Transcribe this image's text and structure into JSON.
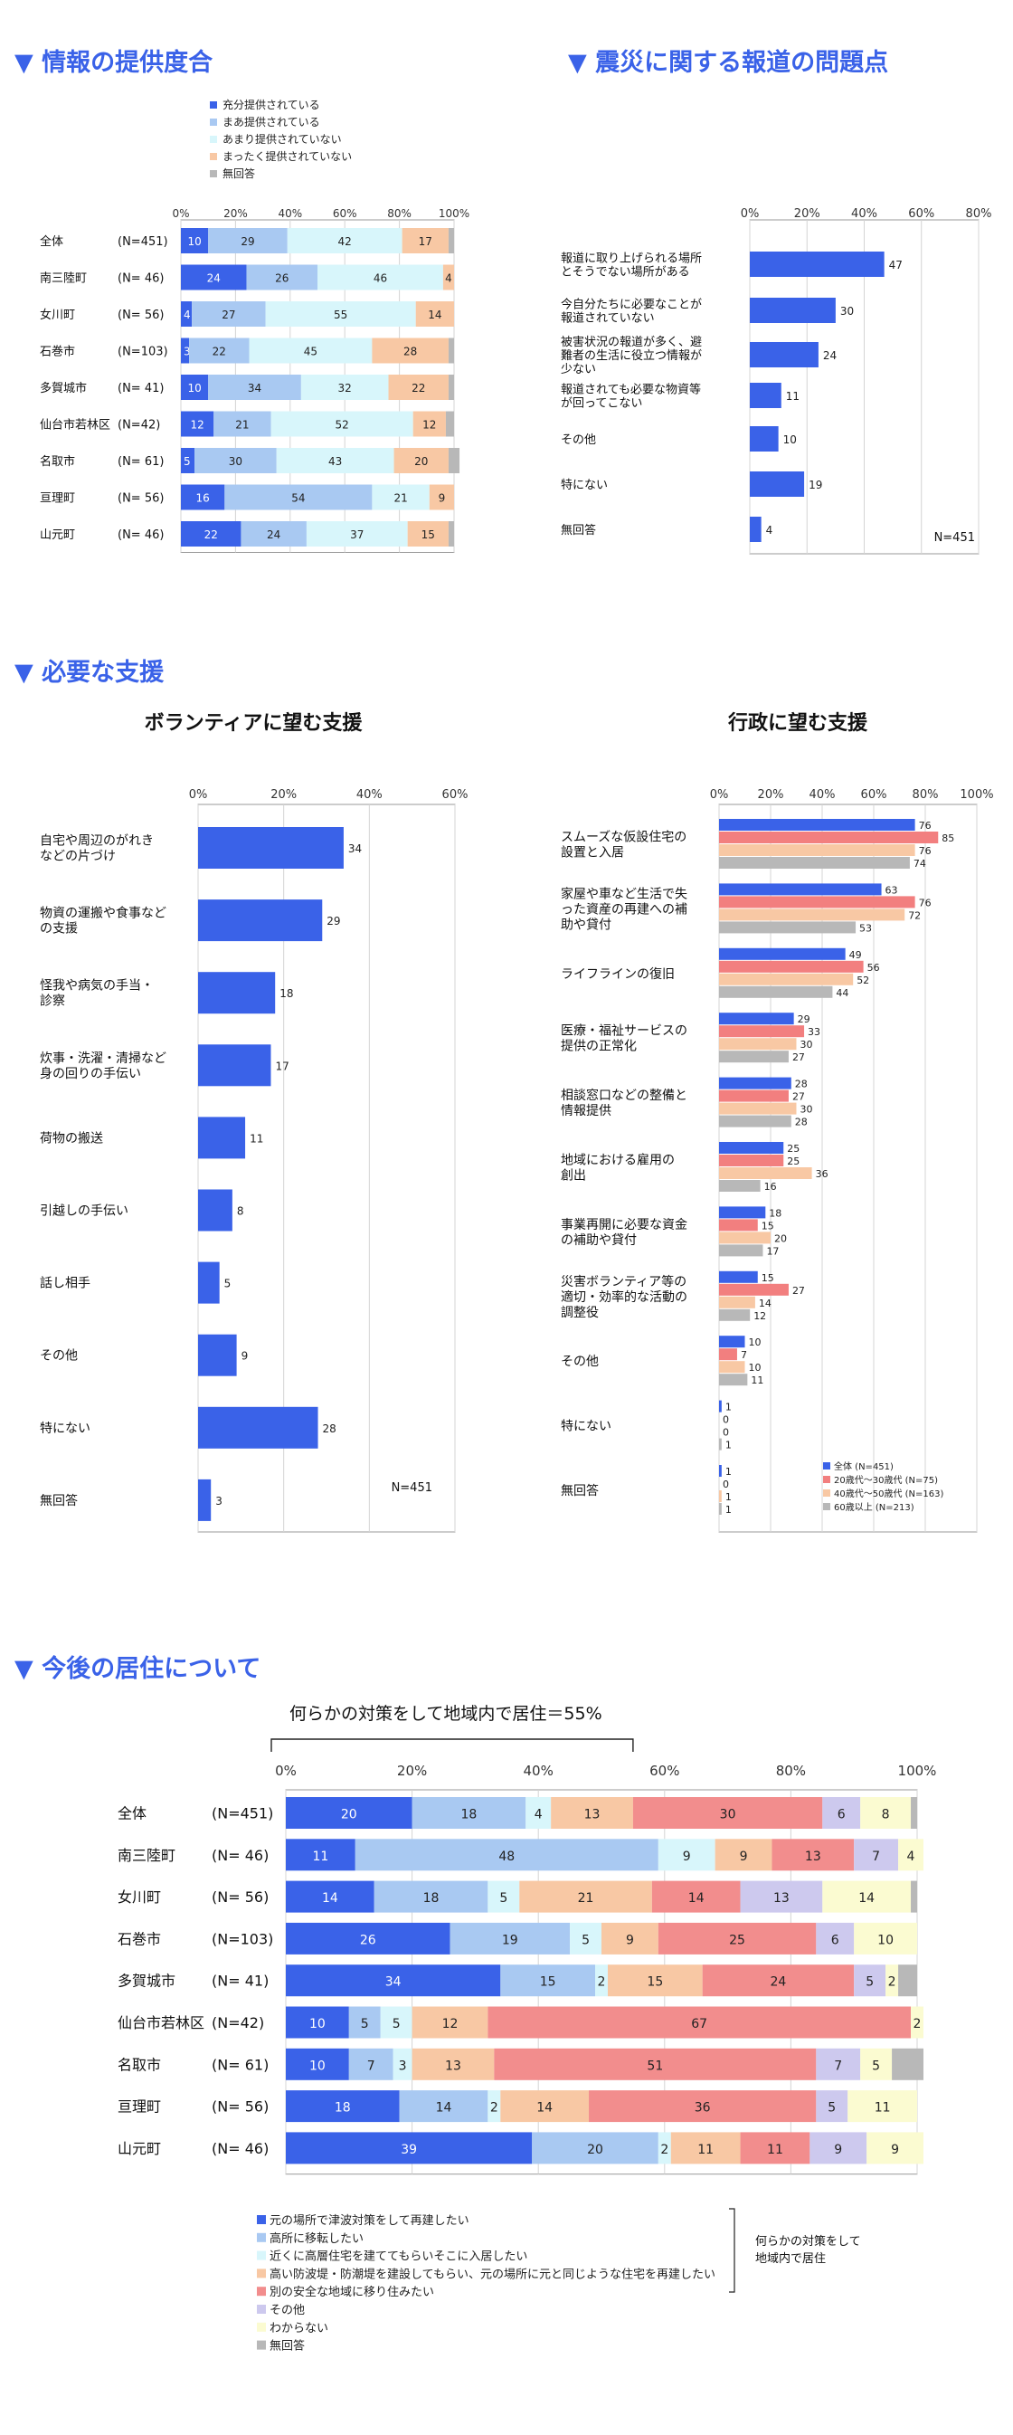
{
  "sections": {
    "info": "▼ 情報の提供度合",
    "problems": "▼ 震災に関する報道の問題点",
    "support": "▼ 必要な支援",
    "residence": "▼ 今後の居住について"
  },
  "colors": {
    "heading": "#3a62e8",
    "blue": "#3a62e8",
    "lightblue": "#a9c9f2",
    "pale": "#d8f6fb",
    "peach": "#f8c8a4",
    "salmon": "#f28d8d",
    "lavender": "#cdc9ee",
    "cream": "#fbfbd1",
    "gray": "#b8b8b8",
    "red": "#f27f7f"
  },
  "chart_data": [
    {
      "id": "info",
      "type": "bar",
      "stacked": true,
      "orientation": "horizontal",
      "title": "",
      "categories": [
        "全体",
        "南三陸町",
        "女川町",
        "石巻市",
        "多賀城市",
        "仙台市若林区",
        "名取市",
        "亘理町",
        "山元町"
      ],
      "ns": [
        "(N=451)",
        "(N= 46)",
        "(N= 56)",
        "(N=103)",
        "(N= 41)",
        "(N=42)",
        "(N= 61)",
        "(N= 56)",
        "(N= 46)"
      ],
      "xlim": [
        0,
        100
      ],
      "ticks": [
        "0%",
        "20%",
        "40%",
        "60%",
        "80%",
        "100%"
      ],
      "series": [
        {
          "name": "充分提供されている",
          "values": [
            10,
            24,
            4,
            3,
            10,
            12,
            5,
            16,
            22
          ]
        },
        {
          "name": "まあ提供されている",
          "values": [
            29,
            26,
            27,
            22,
            34,
            21,
            30,
            54,
            24
          ]
        },
        {
          "name": "あまり提供されていない",
          "values": [
            42,
            46,
            55,
            45,
            32,
            52,
            43,
            21,
            37
          ]
        },
        {
          "name": "まったく提供されていない",
          "values": [
            17,
            4,
            14,
            28,
            22,
            12,
            20,
            9,
            15
          ]
        },
        {
          "name": "無回答",
          "values": [
            2,
            0,
            0,
            2,
            2,
            3,
            4,
            0,
            2
          ]
        }
      ],
      "legend": "top"
    },
    {
      "id": "problems",
      "type": "bar",
      "orientation": "horizontal",
      "categories": [
        "報道に取り上げられる場所とそうでない場所がある",
        "今自分たちに必要なことが報道されていない",
        "被害状況の報道が多く、避難者の生活に役立つ情報が少ない",
        "報道されても必要な物資等が回ってこない",
        "その他",
        "特にない",
        "無回答"
      ],
      "values": [
        47,
        30,
        24,
        11,
        10,
        19,
        4
      ],
      "xlim": [
        0,
        80
      ],
      "ticks": [
        "0%",
        "20%",
        "40%",
        "60%",
        "80%"
      ],
      "n_label": "N=451"
    },
    {
      "id": "volunteer",
      "type": "bar",
      "orientation": "horizontal",
      "title": "ボランティアに望む支援",
      "categories": [
        "自宅や周辺のがれきなどの片づけ",
        "物資の運搬や食事などの支援",
        "怪我や病気の手当・診察",
        "炊事・洗濯・清掃など身の回りの手伝い",
        "荷物の搬送",
        "引越しの手伝い",
        "話し相手",
        "その他",
        "特にない",
        "無回答"
      ],
      "values": [
        34,
        29,
        18,
        17,
        11,
        8,
        5,
        9,
        28,
        3
      ],
      "xlim": [
        0,
        60
      ],
      "ticks": [
        "0%",
        "20%",
        "40%",
        "60%"
      ],
      "n_label": "N=451"
    },
    {
      "id": "government",
      "type": "bar",
      "orientation": "horizontal",
      "title": "行政に望む支援",
      "categories": [
        "スムーズな仮設住宅の設置と入居",
        "家屋や車など生活で失った資産の再建への補助や貸付",
        "ライフラインの復旧",
        "医療・福祉サービスの提供の正常化",
        "相談窓口などの整備と情報提供",
        "地域における雇用の創出",
        "事業再開に必要な資金の補助や貸付",
        "災害ボランティア等の適切・効率的な活動の調整役",
        "その他",
        "特にない",
        "無回答"
      ],
      "xlim": [
        0,
        100
      ],
      "ticks": [
        "0%",
        "20%",
        "40%",
        "60%",
        "80%",
        "100%"
      ],
      "series": [
        {
          "name": "全体 (N=451)",
          "values": [
            76,
            63,
            49,
            29,
            28,
            25,
            18,
            15,
            10,
            1,
            1
          ]
        },
        {
          "name": "20歳代～30歳代 (N=75)",
          "values": [
            85,
            76,
            56,
            33,
            27,
            25,
            15,
            27,
            7,
            0,
            0
          ]
        },
        {
          "name": "40歳代～50歳代 (N=163)",
          "values": [
            76,
            72,
            52,
            30,
            30,
            36,
            20,
            14,
            10,
            0,
            1
          ]
        },
        {
          "name": "60歳以上 (N=213)",
          "values": [
            74,
            53,
            44,
            27,
            28,
            16,
            17,
            12,
            11,
            1,
            1
          ]
        }
      ],
      "legend": "bottom-right"
    },
    {
      "id": "residence",
      "type": "bar",
      "stacked": true,
      "orientation": "horizontal",
      "bracket_label": "何らかの対策をして地域内で居住＝55%",
      "categories": [
        "全体",
        "南三陸町",
        "女川町",
        "石巻市",
        "多賀城市",
        "仙台市若林区",
        "名取市",
        "亘理町",
        "山元町"
      ],
      "ns": [
        "(N=451)",
        "(N= 46)",
        "(N= 56)",
        "(N=103)",
        "(N= 41)",
        "(N=42)",
        "(N= 61)",
        "(N= 56)",
        "(N= 46)"
      ],
      "xlim": [
        0,
        100
      ],
      "ticks": [
        "0%",
        "20%",
        "40%",
        "60%",
        "80%",
        "100%"
      ],
      "series": [
        {
          "name": "元の場所で津波対策をして再建したい",
          "values": [
            20,
            11,
            14,
            26,
            34,
            10,
            10,
            18,
            39
          ]
        },
        {
          "name": "高所に移転したい",
          "values": [
            18,
            48,
            18,
            19,
            15,
            5,
            7,
            14,
            20
          ]
        },
        {
          "name": "近くに高層住宅を建ててもらいそこに入居したい",
          "values": [
            4,
            9,
            5,
            5,
            2,
            5,
            3,
            2,
            2
          ]
        },
        {
          "name": "高い防波堤・防潮堤を建設してもらい、元の場所に元と同じような住宅を再建したい",
          "values": [
            13,
            9,
            21,
            9,
            15,
            12,
            13,
            14,
            11
          ]
        },
        {
          "name": "別の安全な地域に移り住みたい",
          "values": [
            30,
            13,
            14,
            25,
            24,
            67,
            51,
            36,
            11
          ]
        },
        {
          "name": "その他",
          "values": [
            6,
            7,
            13,
            6,
            5,
            0,
            7,
            5,
            9
          ]
        },
        {
          "name": "わからない",
          "values": [
            8,
            4,
            14,
            10,
            2,
            2,
            5,
            11,
            9
          ]
        },
        {
          "name": "無回答",
          "values": [
            1,
            0,
            1,
            0,
            3,
            0,
            5,
            0,
            0
          ]
        }
      ],
      "hidden_labels": [
        [
          0,
          7
        ],
        [
          2,
          7
        ],
        [
          3,
          7
        ],
        [
          4,
          7
        ],
        [
          6,
          7
        ],
        [
          7,
          7
        ]
      ],
      "legend": "bottom",
      "bracket_note": "何らかの対策をして地域内で居住"
    }
  ]
}
